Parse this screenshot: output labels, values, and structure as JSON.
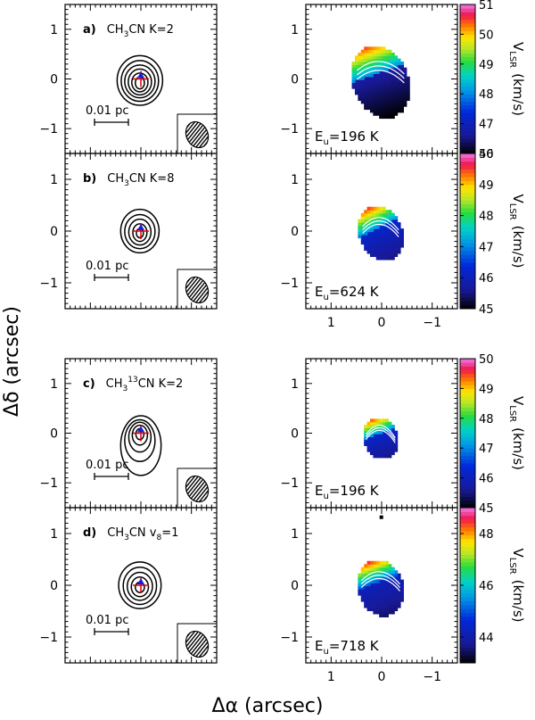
{
  "figure": {
    "y_axis_label": "Δδ (arcsec)",
    "x_axis_label": "Δα (arcsec)",
    "colorbar_label_main": "V",
    "colorbar_label_sub": "LSR",
    "colorbar_label_unit": "(km/s)",
    "scale_bar_text": "0.01 pc",
    "y_ticks": [
      "1",
      "0",
      "−1"
    ],
    "x_ticks": [
      "1",
      "0",
      "−1"
    ]
  },
  "chart_data": [
    {
      "type": "contour",
      "panel": "a",
      "label": "a)",
      "species": "CH",
      "sub1": "3",
      "mid": "CN K=2",
      "xlim": [
        1.5,
        -1.5
      ],
      "ylim": [
        -1.5,
        1.5
      ],
      "contours": [
        {
          "rx": 0.45,
          "ry": 0.5,
          "cx": 0.02,
          "cy": -0.03
        },
        {
          "rx": 0.37,
          "ry": 0.41,
          "cx": 0.02,
          "cy": -0.04
        },
        {
          "rx": 0.3,
          "ry": 0.33,
          "cx": 0.02,
          "cy": -0.05
        },
        {
          "rx": 0.23,
          "ry": 0.26,
          "cx": 0.02,
          "cy": -0.06
        },
        {
          "rx": 0.16,
          "ry": 0.19,
          "cx": 0.02,
          "cy": -0.07
        },
        {
          "rx": 0.09,
          "ry": 0.12,
          "cx": 0.02,
          "cy": -0.08
        }
      ]
    },
    {
      "type": "heatmap",
      "panel": "a-velocity",
      "eu_text": "E",
      "eu_sub": "u",
      "eu_value": "=196 K",
      "xlim": [
        1.5,
        -1.5
      ],
      "ylim": [
        -1.5,
        1.5
      ],
      "colorbar": {
        "min": 46,
        "max": 51,
        "ticks": [
          46,
          47,
          48,
          49,
          50,
          51
        ]
      },
      "v_top": 50.5,
      "v_bottom": 46.0,
      "v_split": 48.0
    },
    {
      "type": "contour",
      "panel": "b",
      "label": "b)",
      "species": "CH",
      "sub1": "3",
      "mid": "CN K=8",
      "xlim": [
        1.5,
        -1.5
      ],
      "ylim": [
        -1.5,
        1.5
      ],
      "contours": [
        {
          "rx": 0.38,
          "ry": 0.42,
          "cx": 0.02,
          "cy": 0.0
        },
        {
          "rx": 0.3,
          "ry": 0.33,
          "cx": 0.02,
          "cy": -0.01
        },
        {
          "rx": 0.22,
          "ry": 0.25,
          "cx": 0.02,
          "cy": -0.02
        },
        {
          "rx": 0.14,
          "ry": 0.17,
          "cx": 0.02,
          "cy": -0.03
        },
        {
          "rx": 0.07,
          "ry": 0.09,
          "cx": 0.02,
          "cy": -0.04
        }
      ]
    },
    {
      "type": "heatmap",
      "panel": "b-velocity",
      "eu_text": "E",
      "eu_sub": "u",
      "eu_value": "=624 K",
      "xlim": [
        1.5,
        -1.5
      ],
      "ylim": [
        -1.5,
        1.5
      ],
      "colorbar": {
        "min": 45,
        "max": 50,
        "ticks": [
          45,
          46,
          47,
          48,
          49,
          50
        ]
      },
      "v_top": 49.5,
      "v_bottom": 45.5,
      "v_split": 47.0
    },
    {
      "type": "contour",
      "panel": "c",
      "label": "c)",
      "species": "CH",
      "sub1": "3",
      "sup": "13",
      "mid": "CN K=2",
      "xlim": [
        1.5,
        -1.5
      ],
      "ylim": [
        -1.5,
        1.5
      ],
      "contours": [
        {
          "rx": 0.4,
          "ry": 0.6,
          "cx": 0.0,
          "cy": -0.25
        },
        {
          "rx": 0.3,
          "ry": 0.42,
          "cx": 0.02,
          "cy": -0.15
        },
        {
          "rx": 0.22,
          "ry": 0.3,
          "cx": 0.02,
          "cy": -0.08
        },
        {
          "rx": 0.15,
          "ry": 0.2,
          "cx": 0.02,
          "cy": -0.04
        },
        {
          "rx": 0.08,
          "ry": 0.11,
          "cx": 0.02,
          "cy": -0.02
        }
      ]
    },
    {
      "type": "heatmap",
      "panel": "c-velocity",
      "eu_text": "E",
      "eu_sub": "u",
      "eu_value": "=196 K",
      "xlim": [
        1.5,
        -1.5
      ],
      "ylim": [
        -1.5,
        1.5
      ],
      "colorbar": {
        "min": 45,
        "max": 50,
        "ticks": [
          45,
          46,
          47,
          48,
          49,
          50
        ]
      },
      "v_top": 49.5,
      "v_bottom": 45.5,
      "v_split": 47.0
    },
    {
      "type": "contour",
      "panel": "d",
      "label": "d)",
      "species": "CH",
      "sub1": "3",
      "mid": "CN  v",
      "sub2": "8",
      "tail": "=1",
      "xlim": [
        1.5,
        -1.5
      ],
      "ylim": [
        -1.5,
        1.5
      ],
      "contours": [
        {
          "rx": 0.42,
          "ry": 0.45,
          "cx": 0.02,
          "cy": 0.0
        },
        {
          "rx": 0.33,
          "ry": 0.36,
          "cx": 0.02,
          "cy": -0.01
        },
        {
          "rx": 0.25,
          "ry": 0.27,
          "cx": 0.02,
          "cy": -0.02
        },
        {
          "rx": 0.17,
          "ry": 0.19,
          "cx": 0.02,
          "cy": -0.03
        },
        {
          "rx": 0.09,
          "ry": 0.1,
          "cx": 0.02,
          "cy": -0.04
        }
      ]
    },
    {
      "type": "heatmap",
      "panel": "d-velocity",
      "eu_text": "E",
      "eu_sub": "u",
      "eu_value": "=718 K",
      "xlim": [
        1.5,
        -1.5
      ],
      "ylim": [
        -1.5,
        1.5
      ],
      "colorbar": {
        "min": 43,
        "max": 49,
        "ticks": [
          44,
          46,
          48
        ]
      },
      "v_top": 48.5,
      "v_bottom": 43.5,
      "v_split": 45.0
    }
  ]
}
